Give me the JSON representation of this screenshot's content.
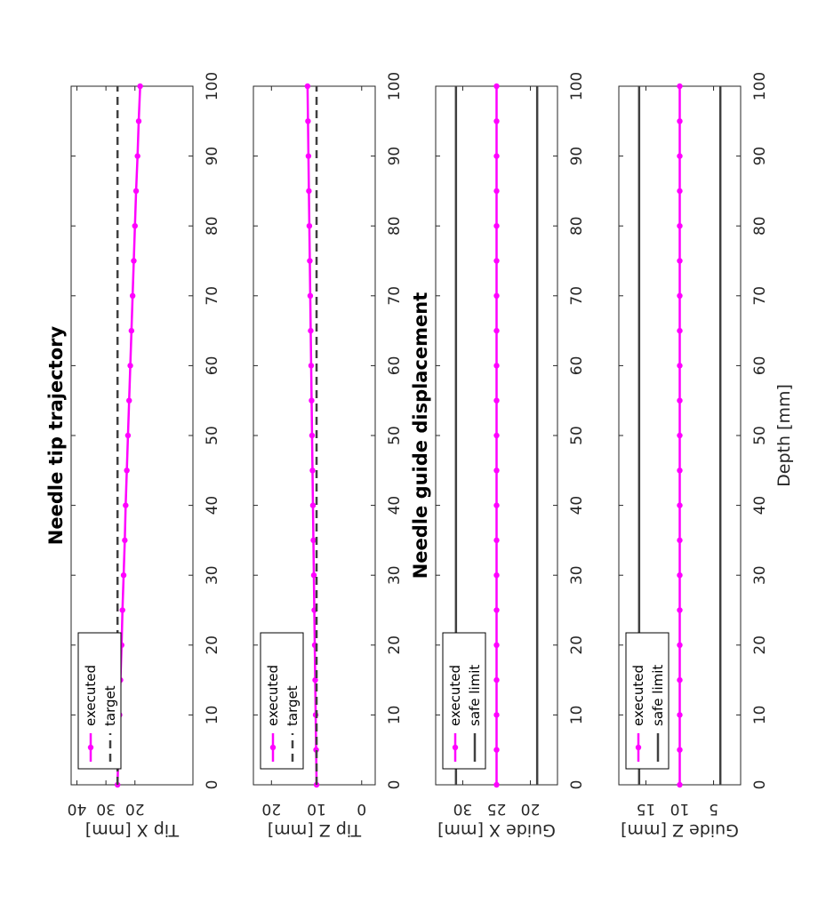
{
  "colors": {
    "executed": "#ff00ff",
    "reference": "#404040",
    "axis": "#262626"
  },
  "panel_titles": {
    "top": "Needle tip trajectory",
    "bottom": "Needle guide displacement"
  },
  "shared_xlabel": "Depth [mm]",
  "chart_data": [
    {
      "type": "line",
      "ylabel": "Tip X [mm]",
      "xlim": [
        0,
        100
      ],
      "ylim": [
        0,
        42
      ],
      "xticks": [
        0,
        10,
        20,
        30,
        40,
        50,
        60,
        70,
        80,
        90,
        100
      ],
      "yticks": [
        20,
        30,
        40
      ],
      "x": [
        0,
        5,
        10,
        15,
        20,
        25,
        30,
        35,
        40,
        45,
        50,
        55,
        60,
        65,
        70,
        75,
        80,
        85,
        90,
        95,
        100
      ],
      "series": [
        {
          "name": "executed",
          "style": "solid-marker",
          "values": [
            26.0,
            25.7,
            25.3,
            25.0,
            24.6,
            24.3,
            23.9,
            23.5,
            23.2,
            22.8,
            22.4,
            22.0,
            21.6,
            21.2,
            20.8,
            20.4,
            20.0,
            19.6,
            19.1,
            18.7,
            18.2
          ]
        },
        {
          "name": "target",
          "style": "dashed",
          "values": [
            26,
            26,
            26,
            26,
            26,
            26,
            26,
            26,
            26,
            26,
            26,
            26,
            26,
            26,
            26,
            26,
            26,
            26,
            26,
            26,
            26
          ]
        }
      ],
      "legend": "bottom-left"
    },
    {
      "type": "line",
      "ylabel": "Tip Z [mm]",
      "xlim": [
        0,
        100
      ],
      "ylim": [
        -3,
        24
      ],
      "xticks": [
        0,
        10,
        20,
        30,
        40,
        50,
        60,
        70,
        80,
        90,
        100
      ],
      "yticks": [
        0,
        10,
        20
      ],
      "x": [
        0,
        5,
        10,
        15,
        20,
        25,
        30,
        35,
        40,
        45,
        50,
        55,
        60,
        65,
        70,
        75,
        80,
        85,
        90,
        95,
        100
      ],
      "series": [
        {
          "name": "executed",
          "style": "solid-marker",
          "values": [
            10.0,
            10.1,
            10.2,
            10.3,
            10.4,
            10.5,
            10.6,
            10.7,
            10.8,
            10.9,
            11.0,
            11.1,
            11.2,
            11.3,
            11.4,
            11.5,
            11.6,
            11.7,
            11.8,
            11.9,
            12.0
          ]
        },
        {
          "name": "target",
          "style": "dashed",
          "values": [
            10,
            10,
            10,
            10,
            10,
            10,
            10,
            10,
            10,
            10,
            10,
            10,
            10,
            10,
            10,
            10,
            10,
            10,
            10,
            10,
            10
          ]
        }
      ],
      "legend": "bottom-left"
    },
    {
      "type": "line",
      "ylabel": "Guide X [mm]",
      "xlim": [
        0,
        100
      ],
      "ylim": [
        16,
        34
      ],
      "xticks": [
        0,
        10,
        20,
        30,
        40,
        50,
        60,
        70,
        80,
        90,
        100
      ],
      "yticks": [
        20,
        25,
        30
      ],
      "x": [
        0,
        5,
        10,
        15,
        20,
        25,
        30,
        35,
        40,
        45,
        50,
        55,
        60,
        65,
        70,
        75,
        80,
        85,
        90,
        95,
        100
      ],
      "series": [
        {
          "name": "executed",
          "style": "solid-marker",
          "values": [
            25,
            25,
            25,
            25,
            25,
            25,
            25,
            25,
            25,
            25,
            25,
            25,
            25,
            25,
            25,
            25,
            25,
            25,
            25,
            25,
            25
          ]
        },
        {
          "name": "safe limit",
          "style": "solid",
          "values": [
            31,
            31,
            31,
            31,
            31,
            31,
            31,
            31,
            31,
            31,
            31,
            31,
            31,
            31,
            31,
            31,
            31,
            31,
            31,
            31,
            31
          ]
        },
        {
          "name": "",
          "style": "solid",
          "values": [
            19,
            19,
            19,
            19,
            19,
            19,
            19,
            19,
            19,
            19,
            19,
            19,
            19,
            19,
            19,
            19,
            19,
            19,
            19,
            19,
            19
          ]
        }
      ],
      "legend": "bottom-left"
    },
    {
      "type": "line",
      "ylabel": "Guide Z [mm]",
      "xlim": [
        0,
        100
      ],
      "ylim": [
        1,
        19
      ],
      "xticks": [
        0,
        10,
        20,
        30,
        40,
        50,
        60,
        70,
        80,
        90,
        100
      ],
      "yticks": [
        5,
        10,
        15
      ],
      "x": [
        0,
        5,
        10,
        15,
        20,
        25,
        30,
        35,
        40,
        45,
        50,
        55,
        60,
        65,
        70,
        75,
        80,
        85,
        90,
        95,
        100
      ],
      "series": [
        {
          "name": "executed",
          "style": "solid-marker",
          "values": [
            10,
            10,
            10,
            10,
            10,
            10,
            10,
            10,
            10,
            10,
            10,
            10,
            10,
            10,
            10,
            10,
            10,
            10,
            10,
            10,
            10
          ]
        },
        {
          "name": "safe limit",
          "style": "solid",
          "values": [
            16,
            16,
            16,
            16,
            16,
            16,
            16,
            16,
            16,
            16,
            16,
            16,
            16,
            16,
            16,
            16,
            16,
            16,
            16,
            16,
            16
          ]
        },
        {
          "name": "",
          "style": "solid",
          "values": [
            4,
            4,
            4,
            4,
            4,
            4,
            4,
            4,
            4,
            4,
            4,
            4,
            4,
            4,
            4,
            4,
            4,
            4,
            4,
            4,
            4
          ]
        }
      ],
      "legend": "bottom-left"
    }
  ]
}
